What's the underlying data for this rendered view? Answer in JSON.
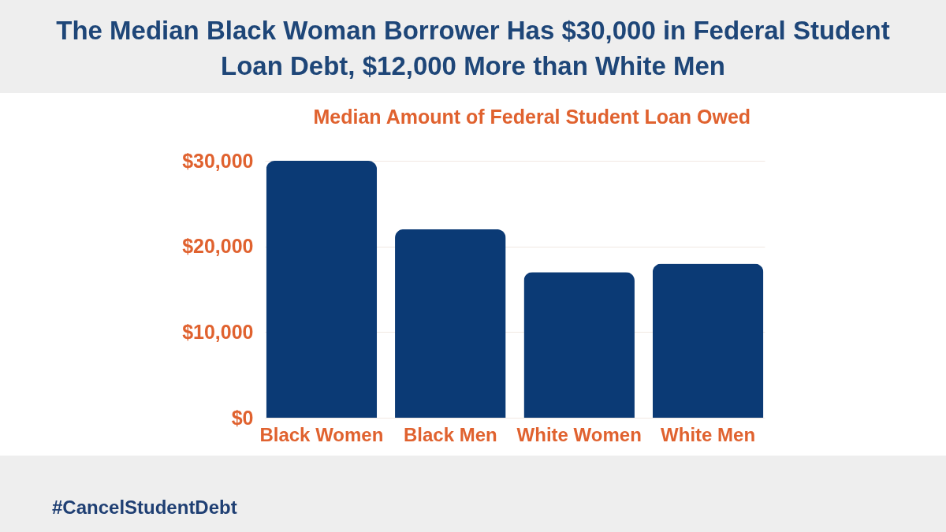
{
  "chart_data": {
    "type": "bar",
    "title": "The Median Black Woman Borrower Has $30,000 in Federal Student Loan Debt, $12,000 More than White Men",
    "ylabel": "Median Amount of Federal Student Loan Owed",
    "categories": [
      "Black Women",
      "Black Men",
      "White Women",
      "White Men"
    ],
    "values": [
      30000,
      22000,
      17000,
      18000
    ],
    "color": "#0b3a75",
    "ylim": [
      0,
      30000
    ],
    "yticks": [
      {
        "value": 0,
        "label": "$0"
      },
      {
        "value": 10000,
        "label": "$10,000"
      },
      {
        "value": 20000,
        "label": "$20,000"
      },
      {
        "value": 30000,
        "label": "$30,000"
      }
    ],
    "grid": "y",
    "annotations": [
      "#CancelStudentDebt"
    ]
  }
}
